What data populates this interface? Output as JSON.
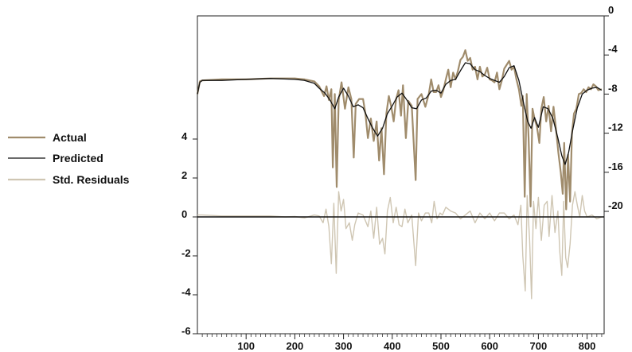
{
  "chart_data": {
    "type": "line",
    "title": "",
    "xlabel": "",
    "ylabel": "",
    "x_ticks": [
      100,
      200,
      300,
      400,
      500,
      600,
      700,
      800
    ],
    "xlim": [
      0,
      835
    ],
    "left_axis": {
      "ticks": [
        4,
        2,
        0,
        -2,
        -4,
        -6
      ],
      "tick_labels": [
        "4",
        "2",
        "0",
        "-2",
        "-4",
        "-6"
      ],
      "range": [
        -6,
        4
      ]
    },
    "right_axis": {
      "ticks": [
        0,
        -4,
        -8,
        -12,
        -16,
        -20
      ],
      "tick_labels": [
        "0",
        "-4",
        "-8",
        "-12",
        "-16",
        "-20"
      ],
      "range": [
        -20,
        0
      ]
    },
    "legend_position": "left",
    "series": [
      {
        "name": "Actual",
        "axis": "right",
        "color": "#a08c6c",
        "points": [
          [
            0,
            -8
          ],
          [
            5,
            -6.7
          ],
          [
            10,
            -6.6
          ],
          [
            50,
            -6.5
          ],
          [
            100,
            -6.5
          ],
          [
            150,
            -6.4
          ],
          [
            200,
            -6.4
          ],
          [
            220,
            -6.5
          ],
          [
            240,
            -6.7
          ],
          [
            250,
            -7.2
          ],
          [
            260,
            -8.2
          ],
          [
            265,
            -7.2
          ],
          [
            270,
            -8.6
          ],
          [
            275,
            -7.5
          ],
          [
            278,
            -15.5
          ],
          [
            282,
            -8
          ],
          [
            286,
            -17.5
          ],
          [
            290,
            -8.6
          ],
          [
            296,
            -6.8
          ],
          [
            303,
            -9.5
          ],
          [
            310,
            -7.3
          ],
          [
            316,
            -8.5
          ],
          [
            321,
            -14.5
          ],
          [
            325,
            -9
          ],
          [
            332,
            -8.5
          ],
          [
            340,
            -8.5
          ],
          [
            345,
            -10
          ],
          [
            350,
            -12.5
          ],
          [
            356,
            -10.5
          ],
          [
            362,
            -12.8
          ],
          [
            368,
            -10.8
          ],
          [
            373,
            -14.8
          ],
          [
            378,
            -11.5
          ],
          [
            383,
            -16.2
          ],
          [
            388,
            -10
          ],
          [
            393,
            -8.2
          ],
          [
            398,
            -9.3
          ],
          [
            403,
            -10.8
          ],
          [
            408,
            -8.5
          ],
          [
            413,
            -7.6
          ],
          [
            418,
            -10.2
          ],
          [
            422,
            -7.1
          ],
          [
            428,
            -12.5
          ],
          [
            433,
            -8.7
          ],
          [
            440,
            -9.2
          ],
          [
            448,
            -16.8
          ],
          [
            452,
            -8.5
          ],
          [
            460,
            -8
          ],
          [
            468,
            -9.3
          ],
          [
            475,
            -8
          ],
          [
            480,
            -6.5
          ],
          [
            485,
            -7.8
          ],
          [
            490,
            -7.8
          ],
          [
            495,
            -7.1
          ],
          [
            500,
            -8.3
          ],
          [
            505,
            -7.6
          ],
          [
            510,
            -6.5
          ],
          [
            515,
            -5.5
          ],
          [
            520,
            -7.3
          ],
          [
            525,
            -5.8
          ],
          [
            530,
            -6.5
          ],
          [
            535,
            -5.6
          ],
          [
            540,
            -4.5
          ],
          [
            545,
            -4.2
          ],
          [
            550,
            -3.5
          ],
          [
            555,
            -4.6
          ],
          [
            560,
            -4.3
          ],
          [
            565,
            -5.5
          ],
          [
            570,
            -5.2
          ],
          [
            575,
            -6.5
          ],
          [
            580,
            -5.2
          ],
          [
            585,
            -6.2
          ],
          [
            590,
            -6
          ],
          [
            595,
            -5.3
          ],
          [
            600,
            -6.5
          ],
          [
            605,
            -6.6
          ],
          [
            610,
            -6.8
          ],
          [
            615,
            -5.8
          ],
          [
            620,
            -7.5
          ],
          [
            625,
            -6.6
          ],
          [
            630,
            -5.4
          ],
          [
            635,
            -5
          ],
          [
            640,
            -4.6
          ],
          [
            645,
            -5.5
          ],
          [
            650,
            -5.2
          ],
          [
            655,
            -6.5
          ],
          [
            660,
            -7.5
          ],
          [
            665,
            -9.2
          ],
          [
            668,
            -8.2
          ],
          [
            672,
            -18.5
          ],
          [
            676,
            -8
          ],
          [
            680,
            -12.5
          ],
          [
            684,
            -19.5
          ],
          [
            688,
            -9.5
          ],
          [
            692,
            -10.5
          ],
          [
            697,
            -11.3
          ],
          [
            702,
            -13
          ],
          [
            706,
            -9.5
          ],
          [
            711,
            -8.3
          ],
          [
            716,
            -10.8
          ],
          [
            721,
            -9.2
          ],
          [
            726,
            -11.8
          ],
          [
            731,
            -9.3
          ],
          [
            736,
            -11.5
          ],
          [
            741,
            -14
          ],
          [
            746,
            -16
          ],
          [
            750,
            -18.2
          ],
          [
            753,
            -13
          ],
          [
            757,
            -19.8
          ],
          [
            761,
            -14.2
          ],
          [
            765,
            -19
          ],
          [
            769,
            -12
          ],
          [
            773,
            -10
          ],
          [
            778,
            -9.5
          ],
          [
            783,
            -8
          ],
          [
            788,
            -7.9
          ],
          [
            793,
            -7.5
          ],
          [
            798,
            -7.8
          ],
          [
            803,
            -7.3
          ],
          [
            808,
            -7.5
          ],
          [
            813,
            -7
          ],
          [
            818,
            -7.2
          ],
          [
            823,
            -7.6
          ],
          [
            830,
            -7.5
          ]
        ]
      },
      {
        "name": "Predicted",
        "axis": "right",
        "color": "#111111",
        "points": [
          [
            0,
            -8
          ],
          [
            5,
            -6.8
          ],
          [
            10,
            -6.6
          ],
          [
            50,
            -6.6
          ],
          [
            100,
            -6.5
          ],
          [
            150,
            -6.4
          ],
          [
            200,
            -6.5
          ],
          [
            220,
            -6.6
          ],
          [
            240,
            -6.9
          ],
          [
            250,
            -7.4
          ],
          [
            262,
            -7.9
          ],
          [
            272,
            -8.6
          ],
          [
            282,
            -9.5
          ],
          [
            290,
            -8.3
          ],
          [
            300,
            -7.4
          ],
          [
            310,
            -8.2
          ],
          [
            320,
            -9.3
          ],
          [
            330,
            -9.1
          ],
          [
            340,
            -9.4
          ],
          [
            350,
            -10.5
          ],
          [
            360,
            -11.5
          ],
          [
            370,
            -12.3
          ],
          [
            380,
            -11.5
          ],
          [
            390,
            -10
          ],
          [
            400,
            -9.2
          ],
          [
            410,
            -8.3
          ],
          [
            420,
            -7.9
          ],
          [
            430,
            -8.6
          ],
          [
            440,
            -9.4
          ],
          [
            450,
            -9.5
          ],
          [
            460,
            -8.6
          ],
          [
            470,
            -8.4
          ],
          [
            480,
            -7.7
          ],
          [
            490,
            -7.6
          ],
          [
            500,
            -7.9
          ],
          [
            510,
            -7
          ],
          [
            520,
            -6.6
          ],
          [
            530,
            -6.5
          ],
          [
            540,
            -5.6
          ],
          [
            550,
            -4.8
          ],
          [
            560,
            -4.9
          ],
          [
            570,
            -5.5
          ],
          [
            580,
            -5.7
          ],
          [
            590,
            -6.1
          ],
          [
            600,
            -6.4
          ],
          [
            610,
            -6.6
          ],
          [
            620,
            -6.8
          ],
          [
            630,
            -6.2
          ],
          [
            640,
            -5.3
          ],
          [
            650,
            -5.1
          ],
          [
            660,
            -6.6
          ],
          [
            670,
            -9
          ],
          [
            678,
            -10.8
          ],
          [
            685,
            -11.5
          ],
          [
            692,
            -10.4
          ],
          [
            700,
            -11.4
          ],
          [
            710,
            -9.3
          ],
          [
            720,
            -9.5
          ],
          [
            730,
            -10.5
          ],
          [
            740,
            -12.5
          ],
          [
            748,
            -14.3
          ],
          [
            755,
            -15.2
          ],
          [
            762,
            -14
          ],
          [
            770,
            -11.8
          ],
          [
            780,
            -9.4
          ],
          [
            790,
            -8
          ],
          [
            800,
            -7.6
          ],
          [
            810,
            -7.4
          ],
          [
            820,
            -7.3
          ],
          [
            830,
            -7.6
          ]
        ]
      },
      {
        "name": "Std. Residuals",
        "axis": "left",
        "color": "#cfc6b3",
        "points": [
          [
            0,
            0.1
          ],
          [
            10,
            0.1
          ],
          [
            50,
            0.05
          ],
          [
            100,
            0.05
          ],
          [
            150,
            0.05
          ],
          [
            180,
            0
          ],
          [
            200,
            0.02
          ],
          [
            220,
            -0.05
          ],
          [
            240,
            0.1
          ],
          [
            250,
            0.05
          ],
          [
            258,
            -0.3
          ],
          [
            264,
            0.4
          ],
          [
            270,
            -0.5
          ],
          [
            275,
            -2.4
          ],
          [
            280,
            0.7
          ],
          [
            285,
            -2.9
          ],
          [
            290,
            1.3
          ],
          [
            295,
            0.3
          ],
          [
            300,
            0.9
          ],
          [
            305,
            -0.6
          ],
          [
            312,
            -0.3
          ],
          [
            318,
            -1.2
          ],
          [
            323,
            -0.4
          ],
          [
            330,
            0.2
          ],
          [
            340,
            0.1
          ],
          [
            350,
            -0.5
          ],
          [
            356,
            0.3
          ],
          [
            362,
            -1.1
          ],
          [
            368,
            0.5
          ],
          [
            374,
            -1.4
          ],
          [
            380,
            -1.1
          ],
          [
            385,
            -1.9
          ],
          [
            390,
            0.3
          ],
          [
            396,
            1
          ],
          [
            402,
            -0.3
          ],
          [
            408,
            0.5
          ],
          [
            414,
            -0.4
          ],
          [
            420,
            -0.5
          ],
          [
            426,
            0.4
          ],
          [
            432,
            -0.3
          ],
          [
            440,
            0.1
          ],
          [
            448,
            -2.5
          ],
          [
            454,
            0.2
          ],
          [
            460,
            -0.2
          ],
          [
            468,
            0.2
          ],
          [
            475,
            0.2
          ],
          [
            481,
            -0.3
          ],
          [
            486,
            0.8
          ],
          [
            492,
            -0.1
          ],
          [
            498,
            0.2
          ],
          [
            503,
            0.1
          ],
          [
            510,
            0.5
          ],
          [
            520,
            0.3
          ],
          [
            530,
            0.2
          ],
          [
            540,
            -0.1
          ],
          [
            550,
            0.1
          ],
          [
            560,
            0.3
          ],
          [
            570,
            -0.3
          ],
          [
            580,
            0.2
          ],
          [
            590,
            -0.1
          ],
          [
            600,
            0.2
          ],
          [
            610,
            -0.2
          ],
          [
            620,
            0.2
          ],
          [
            630,
            0.2
          ],
          [
            640,
            -0.1
          ],
          [
            650,
            0.1
          ],
          [
            658,
            -0.4
          ],
          [
            664,
            0.6
          ],
          [
            668,
            -2
          ],
          [
            673,
            -3.8
          ],
          [
            677,
            1.1
          ],
          [
            682,
            -1.2
          ],
          [
            686,
            -4.2
          ],
          [
            690,
            0.8
          ],
          [
            695,
            -0.6
          ],
          [
            700,
            1
          ],
          [
            706,
            -1.2
          ],
          [
            712,
            0.6
          ],
          [
            718,
            0.8
          ],
          [
            722,
            -1
          ],
          [
            728,
            1.1
          ],
          [
            734,
            -0.8
          ],
          [
            740,
            0.3
          ],
          [
            744,
            -1.8
          ],
          [
            748,
            -3
          ],
          [
            752,
            0.8
          ],
          [
            756,
            -2.1
          ],
          [
            760,
            -2.6
          ],
          [
            765,
            -1.4
          ],
          [
            770,
            0.6
          ],
          [
            775,
            1.3
          ],
          [
            780,
            0.6
          ],
          [
            785,
            0
          ],
          [
            790,
            1.1
          ],
          [
            795,
            0.3
          ],
          [
            800,
            0
          ],
          [
            810,
            0.1
          ],
          [
            820,
            -0.1
          ],
          [
            830,
            0
          ]
        ]
      }
    ]
  }
}
